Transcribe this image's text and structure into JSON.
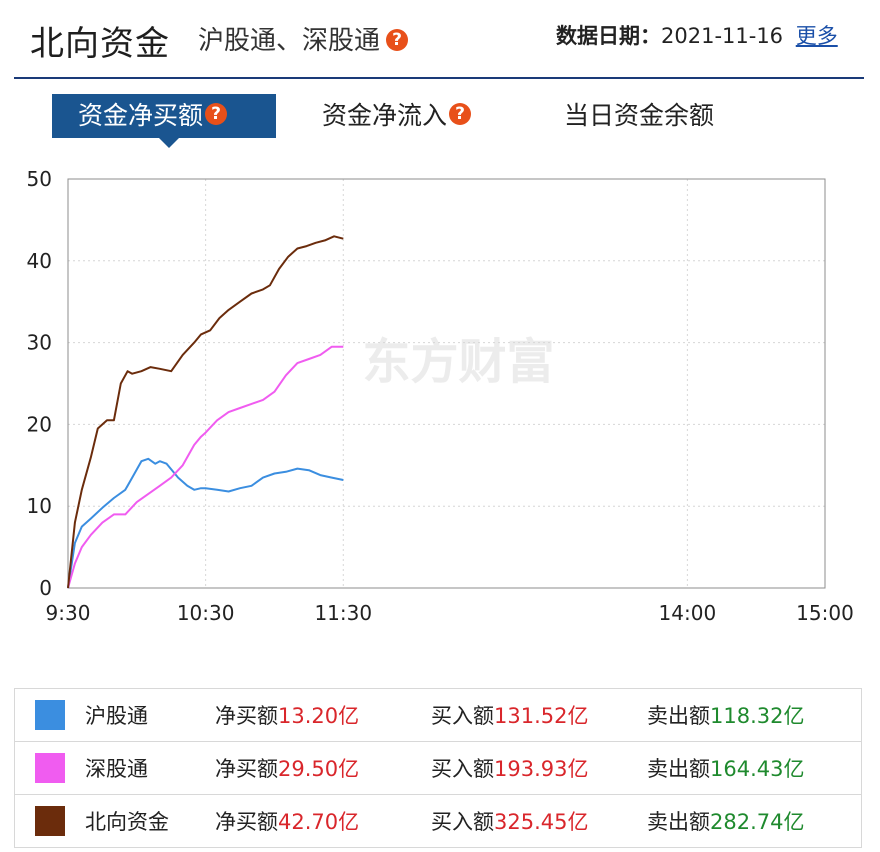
{
  "header": {
    "title": "北向资金",
    "subtitle": "沪股通、深股通",
    "date_label": "数据日期：",
    "date_value": "2021-11-16",
    "more_label": "更多"
  },
  "tabs": [
    {
      "label": "资金净买额",
      "active": true,
      "has_help": true
    },
    {
      "label": "资金净流入",
      "active": false,
      "has_help": true
    },
    {
      "label": "当日资金余额",
      "active": false,
      "has_help": false
    }
  ],
  "icons": {
    "help": "question-mark-icon",
    "help_glyph": "?"
  },
  "watermark": "东方财富",
  "colors": {
    "accent": "#1a5590",
    "help_icon": "#e8501a",
    "hgt": "#3b8ee0",
    "sgt": "#f05cf0",
    "north": "#6b2c0c",
    "buy_text": "#d9262b",
    "sell_text": "#1f8a2e"
  },
  "chart_data": {
    "type": "line",
    "x_ticks": [
      "9:30",
      "10:30",
      "11:30",
      "14:00",
      "15:00"
    ],
    "y_ticks": [
      "0",
      "10",
      "20",
      "30",
      "40",
      "50"
    ],
    "ylim": [
      0,
      50
    ],
    "grid": true,
    "note_x": "minutes since 9:30 open",
    "series": [
      {
        "name": "沪股通",
        "color": "#3b8ee0",
        "x": [
          0,
          3,
          6,
          10,
          15,
          20,
          25,
          28,
          32,
          35,
          38,
          40,
          43,
          48,
          52,
          55,
          58,
          60,
          65,
          70,
          75,
          80,
          85,
          90,
          95,
          100,
          105,
          110,
          115,
          120
        ],
        "y": [
          0,
          5.5,
          7.5,
          8.5,
          9.8,
          11,
          12,
          13.5,
          15.5,
          15.8,
          15.2,
          15.5,
          15.2,
          13.5,
          12.5,
          12,
          12.2,
          12.2,
          12,
          11.8,
          12.2,
          12.5,
          13.5,
          14,
          14.2,
          14.6,
          14.4,
          13.8,
          13.5,
          13.2
        ]
      },
      {
        "name": "深股通",
        "color": "#f05cf0",
        "x": [
          0,
          3,
          6,
          10,
          15,
          20,
          25,
          30,
          35,
          40,
          45,
          50,
          52,
          55,
          58,
          60,
          65,
          70,
          75,
          80,
          85,
          90,
          95,
          100,
          105,
          110,
          115,
          120
        ],
        "y": [
          0,
          3,
          5,
          6.5,
          8,
          9,
          9,
          10.5,
          11.5,
          12.5,
          13.5,
          15,
          16,
          17.5,
          18.5,
          19,
          20.5,
          21.5,
          22,
          22.5,
          23,
          24,
          26,
          27.5,
          28,
          28.5,
          29.5,
          29.5
        ]
      },
      {
        "name": "北向资金",
        "color": "#6b2c0c",
        "x": [
          0,
          3,
          6,
          10,
          13,
          17,
          20,
          23,
          26,
          28,
          32,
          36,
          40,
          45,
          50,
          55,
          58,
          62,
          66,
          70,
          75,
          80,
          85,
          88,
          92,
          96,
          100,
          104,
          108,
          112,
          116,
          120
        ],
        "y": [
          0,
          8,
          12,
          16,
          19.5,
          20.5,
          20.5,
          25,
          26.5,
          26.2,
          26.5,
          27,
          26.8,
          26.5,
          28.5,
          30,
          31,
          31.5,
          33,
          34,
          35,
          36,
          36.5,
          37,
          39,
          40.5,
          41.5,
          41.8,
          42.2,
          42.5,
          43,
          42.7
        ]
      }
    ],
    "table": [
      {
        "name": "沪股通",
        "net_label": "净买额",
        "net_value": "13.20亿",
        "buy_label": "买入额",
        "buy_value": "131.52亿",
        "sell_label": "卖出额",
        "sell_value": "118.32亿"
      },
      {
        "name": "深股通",
        "net_label": "净买额",
        "net_value": "29.50亿",
        "buy_label": "买入额",
        "buy_value": "193.93亿",
        "sell_label": "卖出额",
        "sell_value": "164.43亿"
      },
      {
        "name": "北向资金",
        "net_label": "净买额",
        "net_value": "42.70亿",
        "buy_label": "买入额",
        "buy_value": "325.45亿",
        "sell_label": "卖出额",
        "sell_value": "282.74亿"
      }
    ]
  }
}
